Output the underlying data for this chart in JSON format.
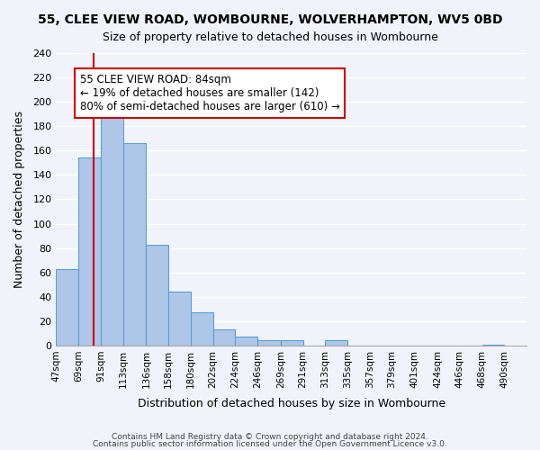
{
  "title": "55, CLEE VIEW ROAD, WOMBOURNE, WOLVERHAMPTON, WV5 0BD",
  "subtitle": "Size of property relative to detached houses in Wombourne",
  "xlabel": "Distribution of detached houses by size in Wombourne",
  "ylabel": "Number of detached properties",
  "bar_left_edges": [
    47,
    69,
    91,
    113,
    136,
    158,
    180,
    202,
    224,
    246,
    269,
    291,
    313,
    335,
    357,
    379,
    401,
    424,
    446,
    468
  ],
  "bar_heights": [
    63,
    154,
    192,
    166,
    83,
    44,
    27,
    13,
    7,
    4,
    4,
    0,
    4,
    0,
    0,
    0,
    0,
    0,
    0,
    1
  ],
  "bar_widths": [
    22,
    22,
    22,
    23,
    22,
    22,
    22,
    22,
    22,
    23,
    22,
    22,
    22,
    22,
    22,
    22,
    23,
    22,
    22,
    22
  ],
  "tick_labels": [
    "47sqm",
    "69sqm",
    "91sqm",
    "113sqm",
    "136sqm",
    "158sqm",
    "180sqm",
    "202sqm",
    "224sqm",
    "246sqm",
    "269sqm",
    "291sqm",
    "313sqm",
    "335sqm",
    "357sqm",
    "379sqm",
    "401sqm",
    "424sqm",
    "446sqm",
    "468sqm",
    "490sqm"
  ],
  "bar_color": "#aec6e8",
  "bar_edge_color": "#5a9fd4",
  "property_line_x": 84,
  "property_line_color": "#cc0000",
  "annotation_title": "55 CLEE VIEW ROAD: 84sqm",
  "annotation_line1": "← 19% of detached houses are smaller (142)",
  "annotation_line2": "80% of semi-detached houses are larger (610) →",
  "annotation_box_color": "#ffffff",
  "annotation_box_edge_color": "#cc0000",
  "ylim": [
    0,
    240
  ],
  "yticks": [
    0,
    20,
    40,
    60,
    80,
    100,
    120,
    140,
    160,
    180,
    200,
    220,
    240
  ],
  "footer1": "Contains HM Land Registry data © Crown copyright and database right 2024.",
  "footer2": "Contains public sector information licensed under the Open Government Licence v3.0.",
  "bg_color": "#f0f4fa",
  "plot_bg_color": "#f0f4fa"
}
